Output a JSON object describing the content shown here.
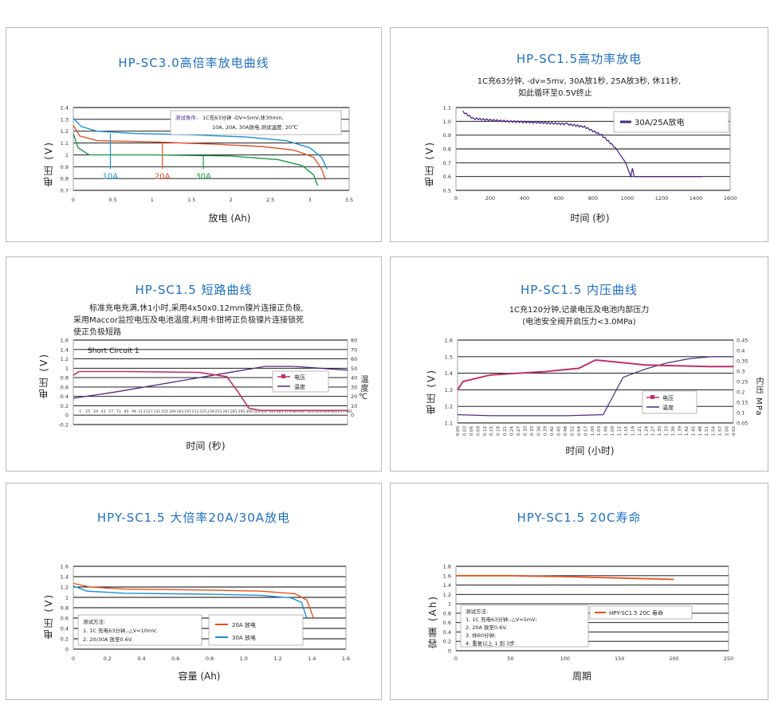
{
  "colors": {
    "title": "#1f6fbf",
    "grid": "#000000",
    "blue": "#1a8fd6",
    "red": "#e0502a",
    "green": "#1e9a48",
    "purple": "#4a2a85",
    "magenta": "#c0306a",
    "orange": "#e8501a"
  },
  "chart_data": [
    {
      "type": "line",
      "title": "HP-SC3.0高倍率放电曲线",
      "xlabel": "放电 (Ah)",
      "ylabel": "电压 (V)",
      "xlim": [
        0,
        3.5
      ],
      "ylim": [
        0.7,
        1.4
      ],
      "xticks": [
        "0",
        "0.5",
        "1",
        "1.5",
        "2",
        "2.5",
        "3",
        "3.5"
      ],
      "yticks": [
        "0.7",
        "0.8",
        "0.9",
        "1",
        "1.1",
        "1.2",
        "1.3",
        "1.4"
      ],
      "annotation": {
        "head": "测试条件:",
        "l1": "1C充63分钟 -DV=5mV,休30min,",
        "l2": "10A, 20A, 30A放电,测试温度: 20℃"
      },
      "series": [
        {
          "name": "10A",
          "points": [
            [
              0,
              1.31
            ],
            [
              0.1,
              1.24
            ],
            [
              0.3,
              1.2
            ],
            [
              0.8,
              1.18
            ],
            [
              1.5,
              1.17
            ],
            [
              2.2,
              1.15
            ],
            [
              2.7,
              1.12
            ],
            [
              3.0,
              1.06
            ],
            [
              3.15,
              0.98
            ],
            [
              3.22,
              0.88
            ]
          ]
        },
        {
          "name": "20A",
          "points": [
            [
              0,
              1.25
            ],
            [
              0.08,
              1.16
            ],
            [
              0.3,
              1.12
            ],
            [
              1.0,
              1.11
            ],
            [
              1.8,
              1.09
            ],
            [
              2.4,
              1.07
            ],
            [
              2.8,
              1.04
            ],
            [
              3.05,
              0.98
            ],
            [
              3.15,
              0.88
            ],
            [
              3.2,
              0.79
            ]
          ]
        },
        {
          "name": "30A",
          "points": [
            [
              0,
              1.18
            ],
            [
              0.06,
              1.06
            ],
            [
              0.2,
              1.0
            ],
            [
              1.0,
              1.0
            ],
            [
              2.0,
              0.99
            ],
            [
              2.6,
              0.96
            ],
            [
              2.9,
              0.91
            ],
            [
              3.05,
              0.83
            ],
            [
              3.1,
              0.74
            ]
          ]
        }
      ]
    },
    {
      "type": "line",
      "title": "HP-SC1.5高功率放电",
      "desc_l1": "1C充63分钟, -dv=5mv, 30A放1秒, 25A放3秒, 休11秒,",
      "desc_l2": "如此循环至0.5V终止",
      "xlabel": "时间 (秒)",
      "ylabel": "电压 (V)",
      "xlim": [
        0,
        1600
      ],
      "ylim": [
        0.5,
        1.1
      ],
      "xticks": [
        "0",
        "200",
        "400",
        "600",
        "800",
        "1000",
        "1200",
        "1400",
        "1600"
      ],
      "yticks": [
        "0.5",
        "0.6",
        "0.7",
        "0.8",
        "0.9",
        "1.0",
        "1.1"
      ],
      "series": [
        {
          "name": "30A/25A放电",
          "points": [
            [
              40,
              1.07
            ],
            [
              100,
              1.02
            ],
            [
              300,
              1.0
            ],
            [
              500,
              0.99
            ],
            [
              650,
              0.98
            ],
            [
              750,
              0.96
            ],
            [
              850,
              0.9
            ],
            [
              930,
              0.81
            ],
            [
              990,
              0.7
            ],
            [
              1020,
              0.6
            ],
            [
              1030,
              0.66
            ],
            [
              1040,
              0.6
            ],
            [
              1440,
              0.6
            ]
          ]
        }
      ]
    },
    {
      "type": "line",
      "title": "HP-SC1.5 短路曲线",
      "desc_l1": "标准充电充满,休1小时,采用4x50x0.12mm镍片连接正负极,",
      "desc_l2": "采用Maccor监控电压及电池温度,利用卡钳将正负极镍片连接锁死",
      "desc_l3": "使正负极短路",
      "inner_label": "Short Circuit 1",
      "xlabel": "时间 (秒)",
      "ylabel": "电压 (V)",
      "y2label": "温度℃",
      "ylim": [
        -0.2,
        1.6
      ],
      "y2lim": [
        0,
        80
      ],
      "yticks": [
        "-0.2",
        "0",
        "0.2",
        "0.4",
        "0.6",
        "0.8",
        "1",
        "1.2",
        "1.4",
        "1.6"
      ],
      "y2ticks": [
        "0",
        "10",
        "20",
        "30",
        "40",
        "50",
        "60",
        "70",
        "80"
      ],
      "xticks": [
        "1",
        "15",
        "29",
        "43",
        "57",
        "71",
        "85",
        "99",
        "113",
        "127",
        "141",
        "155",
        "169",
        "183",
        "197",
        "211",
        "225",
        "239",
        "253",
        "267",
        "281",
        "295",
        "309",
        "323",
        "337",
        "351",
        "365",
        "379",
        "393",
        "407",
        "421",
        "435",
        "449",
        "463",
        "477",
        "491"
      ],
      "series": [
        {
          "name": "电压",
          "axis": "left",
          "points": [
            [
              0,
              0.85
            ],
            [
              10,
              0.93
            ],
            [
              100,
              0.93
            ],
            [
              230,
              0.91
            ],
            [
              280,
              0.82
            ],
            [
              300,
              0.5
            ],
            [
              320,
              0.15
            ],
            [
              340,
              0.1
            ],
            [
              500,
              0.1
            ]
          ]
        },
        {
          "name": "温度",
          "axis": "right",
          "points": [
            [
              0,
              18
            ],
            [
              80,
              25
            ],
            [
              180,
              35
            ],
            [
              280,
              45
            ],
            [
              350,
              52
            ],
            [
              400,
              52
            ],
            [
              500,
              48
            ]
          ]
        }
      ]
    },
    {
      "type": "line",
      "title": "HP-SC1.5 内压曲线",
      "desc_l1": "1C充120分钟,记录电压及电池内部压力",
      "desc_l2": "(电池安全阀开启压力<3.0MPa)",
      "xlabel": "时间 (小时)",
      "ylabel": "电压 (V)",
      "y2label": "内压 MPa",
      "ylim": [
        1.1,
        1.6
      ],
      "y2lim": [
        0.05,
        0.45
      ],
      "yticks": [
        "1.1",
        "1.2",
        "1.3",
        "1.4",
        "1.5",
        "1.6"
      ],
      "y2ticks": [
        "0.05",
        "0.1",
        "0.15",
        "0.2",
        "0.25",
        "0.3",
        "0.35",
        "0.4",
        "0.45"
      ],
      "xticks": [
        "0.00",
        "0.03",
        "0.06",
        "0.09",
        "0.12",
        "0.15",
        "0.18",
        "0.21",
        "0.24",
        "0.27",
        "0.30",
        "0.33",
        "0.36",
        "0.39",
        "0.42",
        "0.45",
        "0.48",
        "0.51",
        "0.54",
        "0.57",
        "1.00",
        "1.03",
        "1.06",
        "1.09",
        "1.12",
        "1.15",
        "1.18",
        "1.21",
        "1.24",
        "1.27",
        "1.30",
        "1.33",
        "1.36",
        "1.39",
        "1.42",
        "1.45",
        "1.48",
        "1.51",
        "1.54",
        "1.57",
        "2.00",
        "d 02"
      ],
      "series": [
        {
          "name": "电压",
          "axis": "left",
          "points": [
            [
              0,
              1.3
            ],
            [
              0.05,
              1.35
            ],
            [
              0.3,
              1.39
            ],
            [
              0.8,
              1.41
            ],
            [
              1.1,
              1.43
            ],
            [
              1.25,
              1.48
            ],
            [
              1.4,
              1.47
            ],
            [
              1.7,
              1.45
            ],
            [
              2.3,
              1.44
            ],
            [
              2.5,
              1.44
            ]
          ]
        },
        {
          "name": "温度",
          "axis": "right",
          "points": [
            [
              0,
              0.09
            ],
            [
              0.3,
              0.085
            ],
            [
              0.6,
              0.085
            ],
            [
              1.0,
              0.085
            ],
            [
              1.32,
              0.09
            ],
            [
              1.38,
              0.15
            ],
            [
              1.5,
              0.27
            ],
            [
              1.7,
              0.31
            ],
            [
              1.9,
              0.34
            ],
            [
              2.1,
              0.36
            ],
            [
              2.3,
              0.37
            ],
            [
              2.5,
              0.37
            ]
          ]
        }
      ]
    },
    {
      "type": "line",
      "title": "HPY-SC1.5 大倍率20A/30A放电",
      "xlabel": "容量 (Ah)",
      "ylabel": "电压 (V)",
      "xlim": [
        0,
        1.6
      ],
      "ylim": [
        0,
        1.6
      ],
      "xticks": [
        "0",
        "0.2",
        "0.4",
        "0.6",
        "0.8",
        "1.0",
        "1.2",
        "1.4",
        "1.6"
      ],
      "yticks": [
        "0",
        "0.2",
        "0.4",
        "0.6",
        "0.8",
        "1",
        "1.2",
        "1.4",
        "1.6"
      ],
      "annotation": {
        "head": "测试方法:",
        "l1": "1. 1C 充电63分钟,-△V=10mV;",
        "l2": "2. 20/30A 放至0.6V."
      },
      "series": [
        {
          "name": "20A 放电",
          "points": [
            [
              0,
              1.27
            ],
            [
              0.1,
              1.2
            ],
            [
              0.3,
              1.16
            ],
            [
              0.8,
              1.14
            ],
            [
              1.1,
              1.12
            ],
            [
              1.3,
              1.07
            ],
            [
              1.37,
              0.95
            ],
            [
              1.41,
              0.6
            ]
          ]
        },
        {
          "name": "30A 放电",
          "points": [
            [
              0,
              1.22
            ],
            [
              0.08,
              1.12
            ],
            [
              0.3,
              1.08
            ],
            [
              0.8,
              1.06
            ],
            [
              1.1,
              1.04
            ],
            [
              1.28,
              0.99
            ],
            [
              1.34,
              0.9
            ],
            [
              1.37,
              0.6
            ]
          ]
        }
      ]
    },
    {
      "type": "line",
      "title": "HPY-SC1.5 20C寿命",
      "xlabel": "周期",
      "ylabel": "容量 (Ah)",
      "xlim": [
        0,
        250
      ],
      "ylim": [
        0,
        1.8
      ],
      "xticks": [
        "0",
        "50",
        "100",
        "150",
        "200",
        "250"
      ],
      "yticks": [
        "0",
        "0.2",
        "0.4",
        "0.6",
        "0.8",
        "1",
        "1.2",
        "1.4",
        "1.6",
        "1.8"
      ],
      "annotation": {
        "head": "测试方法:",
        "l1": "1. 1C 充电63分钟,-△V=5mV;",
        "l2": "2. 20A 放至0.6V.",
        "l3": "3. 休60分钟;",
        "l4": "4. 重复以上 1 到 3步."
      },
      "series": [
        {
          "name": "HPY-SC1.5 20C 寿命",
          "points": [
            [
              0,
              1.6
            ],
            [
              50,
              1.6
            ],
            [
              100,
              1.58
            ],
            [
              150,
              1.55
            ],
            [
              200,
              1.52
            ]
          ]
        }
      ]
    }
  ]
}
